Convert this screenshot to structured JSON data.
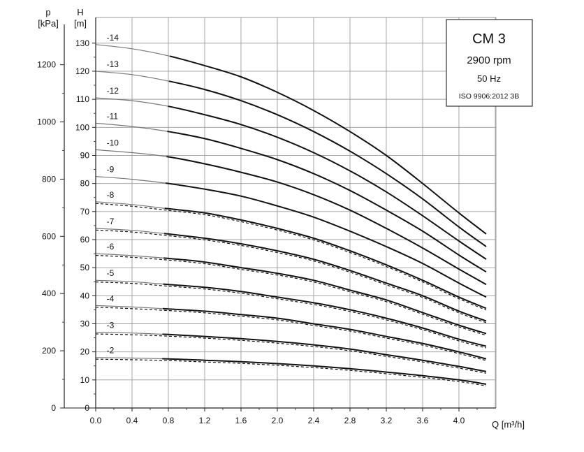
{
  "chart_data": {
    "type": "line",
    "title": "CM 3",
    "subtitle_lines": [
      "2900 rpm",
      "50 Hz",
      "ISO 9906:2012 3B"
    ],
    "xlabel": "Q [m³/h]",
    "ylabel_head": [
      "H",
      "[m]"
    ],
    "ylabel_pressure": [
      "p",
      "[kPa]"
    ],
    "xlim": [
      0,
      4.4
    ],
    "ylim": [
      0,
      135
    ],
    "pressure_lim": [
      0,
      1323
    ],
    "x_ticks": [
      0.0,
      0.4,
      0.8,
      1.2,
      1.6,
      2.0,
      2.4,
      2.8,
      3.2,
      3.6,
      4.0
    ],
    "x_tick_labels": [
      "0.0",
      "0.4",
      "0.8",
      "1.2",
      "1.6",
      "2.0",
      "2.4",
      "2.8",
      "3.2",
      "3.6",
      "4.0"
    ],
    "y_ticks": [
      0,
      10,
      20,
      30,
      40,
      50,
      60,
      70,
      80,
      90,
      100,
      110,
      120,
      130
    ],
    "y_tick_labels": [
      "0",
      "10",
      "20",
      "30",
      "40",
      "50",
      "60",
      "70",
      "80",
      "90",
      "100",
      "110",
      "120",
      "130"
    ],
    "pressure_ticks": [
      0,
      200,
      400,
      600,
      800,
      1000,
      1200
    ],
    "pressure_tick_labels": [
      "0",
      "200",
      "400",
      "600",
      "800",
      "1000",
      "1200"
    ],
    "grid": true,
    "x": [
      0.0,
      0.4,
      0.8,
      1.2,
      1.6,
      2.0,
      2.4,
      2.8,
      3.2,
      3.6,
      4.0,
      4.3
    ],
    "series": [
      {
        "name": "-14",
        "values": [
          129.5,
          128.0,
          125.5,
          122.0,
          118.0,
          112.5,
          106.0,
          98.5,
          90.0,
          80.0,
          69.5,
          62.0
        ]
      },
      {
        "name": "-13",
        "values": [
          120.0,
          118.8,
          116.5,
          113.5,
          109.5,
          104.5,
          98.5,
          91.5,
          83.5,
          74.5,
          64.5,
          57.5
        ]
      },
      {
        "name": "-12",
        "values": [
          110.5,
          109.5,
          107.5,
          104.5,
          101.0,
          96.5,
          91.0,
          84.5,
          77.0,
          68.5,
          59.5,
          53.0
        ]
      },
      {
        "name": "-11",
        "values": [
          101.5,
          100.3,
          98.5,
          96.0,
          92.5,
          88.5,
          83.5,
          77.5,
          70.5,
          63.0,
          54.5,
          48.5
        ]
      },
      {
        "name": "-10",
        "values": [
          92.0,
          91.0,
          89.5,
          87.0,
          84.0,
          80.5,
          76.0,
          70.5,
          64.0,
          57.0,
          49.5,
          44.0
        ]
      },
      {
        "name": "-9",
        "values": [
          82.5,
          81.5,
          80.0,
          78.0,
          75.5,
          72.0,
          68.0,
          63.0,
          57.5,
          51.5,
          44.5,
          39.5
        ]
      },
      {
        "name": "-8",
        "values": [
          73.5,
          72.5,
          71.0,
          69.5,
          67.0,
          64.0,
          60.5,
          56.0,
          51.0,
          45.5,
          39.5,
          35.5
        ]
      },
      {
        "name": "-7",
        "values": [
          64.0,
          63.3,
          62.0,
          60.5,
          58.5,
          56.0,
          53.0,
          49.0,
          44.5,
          40.0,
          34.5,
          31.0
        ]
      },
      {
        "name": "-6",
        "values": [
          55.0,
          54.3,
          53.3,
          52.0,
          50.0,
          48.0,
          45.5,
          42.0,
          38.5,
          34.0,
          29.5,
          26.5
        ]
      },
      {
        "name": "-5",
        "values": [
          45.5,
          45.0,
          44.0,
          43.0,
          41.5,
          39.5,
          37.5,
          35.0,
          32.0,
          28.5,
          24.5,
          22.0
        ]
      },
      {
        "name": "-4",
        "values": [
          36.5,
          36.0,
          35.3,
          34.5,
          33.3,
          32.0,
          30.0,
          28.0,
          25.5,
          23.0,
          20.0,
          17.5
        ]
      },
      {
        "name": "-3",
        "values": [
          27.0,
          26.7,
          26.2,
          25.5,
          24.7,
          23.7,
          22.5,
          21.0,
          19.0,
          17.0,
          14.8,
          13.0
        ]
      },
      {
        "name": "-2",
        "values": [
          18.0,
          17.8,
          17.5,
          17.0,
          16.5,
          15.8,
          15.0,
          14.0,
          12.8,
          11.5,
          10.0,
          8.5
        ]
      }
    ],
    "dashed_series": [
      "-8",
      "-7",
      "-6",
      "-5",
      "-4",
      "-3",
      "-2"
    ],
    "legend": "top-right"
  },
  "colors": {
    "curve": "#111111",
    "grid": "#9a9a9a",
    "axis": "#222222",
    "background": "#ffffff"
  }
}
